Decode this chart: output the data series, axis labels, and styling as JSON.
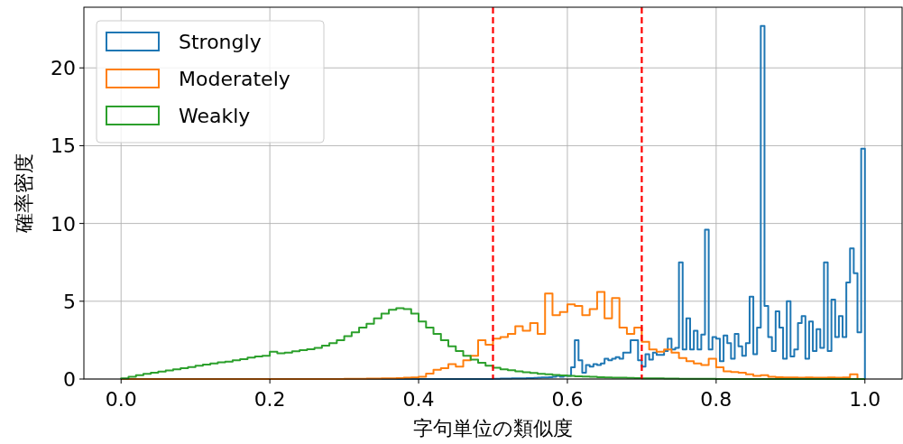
{
  "chart_data": {
    "type": "histogram",
    "xlabel": "字句単位の類似度",
    "ylabel": "確率密度",
    "xlim": [
      -0.05,
      1.05
    ],
    "ylim": [
      0,
      23.9
    ],
    "xticks": [
      {
        "value": 0,
        "label": "0.0"
      },
      0.2,
      0.4,
      0.6,
      0.8,
      {
        "value": 1,
        "label": "1.0"
      }
    ],
    "yticks": [
      0,
      5,
      10,
      15,
      20
    ],
    "grid": true,
    "legend": "top left",
    "bins": [
      0,
      0.005,
      0.01,
      0.015,
      0.02,
      0.025,
      0.03,
      0.035,
      0.04,
      0.045,
      0.05,
      0.055,
      0.06,
      0.065,
      0.07,
      0.075,
      0.08,
      0.085,
      0.09,
      0.095,
      0.1,
      0.105,
      0.11,
      0.115,
      0.12,
      0.125,
      0.13,
      0.135,
      0.14,
      0.145,
      0.15,
      0.155,
      0.16,
      0.165,
      0.17,
      0.175,
      0.18,
      0.185,
      0.19,
      0.195,
      0.2,
      0.205,
      0.21,
      0.215,
      0.22,
      0.225,
      0.23,
      0.235,
      0.24,
      0.245,
      0.25,
      0.255,
      0.26,
      0.265,
      0.27,
      0.275,
      0.28,
      0.285,
      0.29,
      0.295,
      0.3,
      0.305,
      0.31,
      0.315,
      0.32,
      0.325,
      0.33,
      0.335,
      0.34,
      0.345,
      0.35,
      0.355,
      0.36,
      0.365,
      0.37,
      0.375,
      0.38,
      0.385,
      0.39,
      0.395,
      0.4,
      0.405,
      0.41,
      0.415,
      0.42,
      0.425,
      0.43,
      0.435,
      0.44,
      0.445,
      0.45,
      0.455,
      0.46,
      0.465,
      0.47,
      0.475,
      0.48,
      0.485,
      0.49,
      0.495,
      0.5,
      0.505,
      0.51,
      0.515,
      0.52,
      0.525,
      0.53,
      0.535,
      0.54,
      0.545,
      0.55,
      0.555,
      0.56,
      0.565,
      0.57,
      0.575,
      0.58,
      0.585,
      0.59,
      0.595,
      0.6,
      0.605,
      0.61,
      0.615,
      0.62,
      0.625,
      0.63,
      0.635,
      0.64,
      0.645,
      0.65,
      0.655,
      0.66,
      0.665,
      0.67,
      0.675,
      0.68,
      0.685,
      0.69,
      0.695,
      0.7,
      0.705,
      0.71,
      0.715,
      0.72,
      0.725,
      0.73,
      0.735,
      0.74,
      0.745,
      0.75,
      0.755,
      0.76,
      0.765,
      0.77,
      0.775,
      0.78,
      0.785,
      0.79,
      0.795,
      0.8,
      0.805,
      0.81,
      0.815,
      0.82,
      0.825,
      0.83,
      0.835,
      0.84,
      0.845,
      0.85,
      0.855,
      0.86,
      0.865,
      0.87,
      0.875,
      0.88,
      0.885,
      0.89,
      0.895,
      0.9,
      0.905,
      0.91,
      0.915,
      0.92,
      0.925,
      0.93,
      0.935,
      0.94,
      0.945,
      0.95,
      0.955,
      0.96,
      0.965,
      0.97,
      0.975,
      0.98,
      0.985,
      0.99,
      0.995,
      1.0
    ],
    "ref_lines": [
      {
        "axis": "x",
        "value": 0.5,
        "color": "#ff0000",
        "line_style": "dashed"
      },
      {
        "axis": "x",
        "value": 0.7,
        "color": "#ff0000",
        "line_style": "dashed"
      }
    ],
    "series": [
      {
        "name": "Strongly",
        "color": "#1f77b4",
        "values": [
          null,
          null,
          null,
          null,
          null,
          null,
          null,
          null,
          null,
          null,
          null,
          null,
          null,
          null,
          null,
          null,
          null,
          null,
          null,
          null,
          null,
          null,
          null,
          null,
          null,
          null,
          null,
          null,
          null,
          null,
          null,
          null,
          null,
          null,
          null,
          null,
          null,
          null,
          null,
          null,
          null,
          null,
          null,
          null,
          null,
          null,
          null,
          null,
          null,
          null,
          null,
          null,
          null,
          null,
          null,
          null,
          null,
          null,
          null,
          null,
          null,
          null,
          null,
          null,
          null,
          null,
          null,
          null,
          null,
          null,
          null,
          null,
          null,
          null,
          null,
          null,
          null,
          null,
          null,
          null,
          null,
          null,
          null,
          null,
          null,
          null,
          null,
          null,
          null,
          null,
          null,
          null,
          null,
          null,
          null,
          null,
          null,
          null,
          null,
          null,
          0.02,
          0.02,
          0.03,
          0.03,
          0.03,
          0.04,
          0.04,
          0.05,
          0.05,
          0.06,
          0.06,
          0.07,
          0.08,
          0.1,
          0.1,
          0.12,
          0.15,
          0.2,
          0.15,
          0.2,
          0.2,
          0.75,
          2.5,
          1.2,
          0.4,
          0.9,
          0.8,
          0.95,
          0.9,
          1.0,
          1.3,
          1.2,
          1.3,
          1.4,
          1.3,
          1.7,
          1.7,
          2.5,
          2.5,
          1.2,
          0.8,
          1.6,
          1.25,
          1.7,
          1.55,
          1.55,
          1.8,
          2.6,
          1.9,
          2.0,
          7.5,
          1.9,
          3.9,
          1.9,
          3.1,
          1.9,
          2.85,
          9.6,
          1.9,
          2.7,
          2.6,
          1.15,
          2.8,
          2.3,
          1.3,
          2.9,
          2.1,
          1.5,
          2.3,
          5.3,
          1.6,
          3.3,
          22.7,
          4.7,
          2.7,
          1.8,
          4.35,
          3.3,
          1.3,
          5.0,
          1.45,
          1.9,
          3.6,
          4.05,
          1.3,
          3.7,
          1.8,
          3.2,
          2.0,
          7.5,
          1.8,
          5.1,
          2.7,
          4.05,
          2.7,
          6.2,
          8.4,
          6.8,
          3.0,
          14.8
        ]
      },
      {
        "name": "Moderately",
        "color": "#ff7f0e",
        "values": [
          null,
          null,
          null,
          null,
          null,
          null,
          null,
          null,
          null,
          null,
          null,
          null,
          null,
          null,
          null,
          null,
          null,
          null,
          null,
          null,
          null,
          null,
          null,
          null,
          null,
          null,
          null,
          null,
          null,
          null,
          null,
          null,
          null,
          null,
          null,
          null,
          null,
          null,
          null,
          null,
          null,
          null,
          null,
          null,
          null,
          null,
          null,
          null,
          null,
          null,
          null,
          null,
          null,
          null,
          null,
          null,
          null,
          null,
          null,
          null,
          0.02,
          0.02,
          0.02,
          0.02,
          0.02,
          0.02,
          0.03,
          0.03,
          0.03,
          0.03,
          0.04,
          0.04,
          0.05,
          0.05,
          0.06,
          0.06,
          0.08,
          0.08,
          0.1,
          0.1,
          0.15,
          0.15,
          0.35,
          0.35,
          0.6,
          0.6,
          0.7,
          0.7,
          0.95,
          0.95,
          0.8,
          0.8,
          1.2,
          1.2,
          1.5,
          1.5,
          2.5,
          2.5,
          2.2,
          2.2,
          2.6,
          2.6,
          2.7,
          2.7,
          2.9,
          2.9,
          3.4,
          3.4,
          3.1,
          3.1,
          3.6,
          3.6,
          2.9,
          2.9,
          5.5,
          5.5,
          4.1,
          4.1,
          4.3,
          4.3,
          4.8,
          4.8,
          4.7,
          4.7,
          4.1,
          4.1,
          4.5,
          4.5,
          5.6,
          5.6,
          3.9,
          3.9,
          5.2,
          5.2,
          3.3,
          3.3,
          2.9,
          2.9,
          3.3,
          3.3,
          2.4,
          2.4,
          1.9,
          1.9,
          1.75,
          1.75,
          1.9,
          1.9,
          1.7,
          1.7,
          1.35,
          1.35,
          1.15,
          1.15,
          1.0,
          1.0,
          0.9,
          0.9,
          1.3,
          1.3,
          0.75,
          0.75,
          0.5,
          0.5,
          0.45,
          0.45,
          0.4,
          0.4,
          0.3,
          0.3,
          0.2,
          0.2,
          0.25,
          0.25,
          0.15,
          0.15,
          0.12,
          0.12,
          0.1,
          0.1,
          0.1,
          0.1,
          0.08,
          0.08,
          0.1,
          0.1,
          0.08,
          0.08,
          0.08,
          0.08,
          0.1,
          0.1,
          0.08,
          0.08,
          0.1,
          0.1,
          0.3,
          0.3,
          null,
          null
        ]
      },
      {
        "name": "Weakly",
        "color": "#2ca02c",
        "values": [
          0.05,
          0.05,
          0.15,
          0.15,
          0.25,
          0.25,
          0.33,
          0.33,
          0.4,
          0.4,
          0.48,
          0.48,
          0.55,
          0.55,
          0.62,
          0.62,
          0.7,
          0.7,
          0.77,
          0.77,
          0.85,
          0.85,
          0.93,
          0.93,
          1.0,
          1.0,
          1.07,
          1.07,
          1.12,
          1.12,
          1.2,
          1.2,
          1.28,
          1.28,
          1.38,
          1.38,
          1.45,
          1.45,
          1.5,
          1.5,
          1.75,
          1.75,
          1.65,
          1.65,
          1.7,
          1.7,
          1.78,
          1.78,
          1.85,
          1.85,
          1.92,
          1.92,
          2.0,
          2.0,
          2.15,
          2.15,
          2.3,
          2.3,
          2.5,
          2.5,
          2.75,
          2.75,
          3.0,
          3.0,
          3.3,
          3.3,
          3.55,
          3.55,
          3.9,
          3.9,
          4.2,
          4.2,
          4.45,
          4.45,
          4.55,
          4.55,
          4.5,
          4.5,
          4.2,
          4.2,
          3.7,
          3.7,
          3.3,
          3.3,
          2.9,
          2.9,
          2.5,
          2.5,
          2.1,
          2.1,
          1.8,
          1.8,
          1.5,
          1.5,
          1.25,
          1.25,
          1.05,
          1.05,
          0.85,
          0.85,
          0.72,
          0.72,
          0.63,
          0.63,
          0.56,
          0.56,
          0.5,
          0.5,
          0.44,
          0.44,
          0.39,
          0.39,
          0.34,
          0.34,
          0.3,
          0.3,
          0.26,
          0.26,
          0.23,
          0.23,
          0.2,
          0.2,
          0.18,
          0.18,
          0.16,
          0.16,
          0.14,
          0.14,
          0.12,
          0.12,
          0.1,
          0.1,
          0.09,
          0.09,
          0.08,
          0.08,
          0.07,
          0.07,
          0.06,
          0.06,
          0.05,
          0.05,
          0.04,
          0.04,
          0.04,
          0.04,
          0.03,
          0.03,
          0.03,
          0.03,
          0.02,
          0.02,
          0.02,
          0.02,
          0.02,
          0.02,
          0.01,
          0.01,
          0.01,
          0.01,
          null,
          null,
          null,
          null,
          null,
          null,
          null,
          null,
          null,
          null,
          null,
          null,
          null,
          null,
          null,
          null,
          null,
          null,
          null,
          null,
          null,
          null,
          null,
          null,
          null,
          null,
          null,
          null,
          null,
          null,
          null,
          null,
          null,
          null,
          null,
          null,
          null,
          null,
          null,
          null
        ]
      }
    ]
  }
}
